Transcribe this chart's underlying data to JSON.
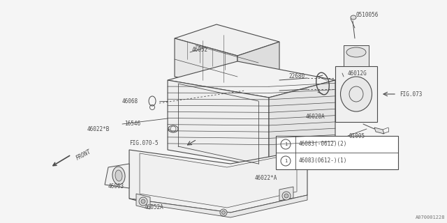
{
  "bg_color": "#f5f5f5",
  "line_color": "#4a4a4a",
  "text_color": "#4a4a4a",
  "fig_width": 6.4,
  "fig_height": 3.2,
  "dpi": 100,
  "watermark": "A070001228",
  "legend_items": [
    {
      "circle_num": "1",
      "text": "46083(-0612)(2)"
    },
    {
      "circle_num": "1",
      "text": "46083(0612-)(1)"
    }
  ],
  "label_font_size": 5.5
}
